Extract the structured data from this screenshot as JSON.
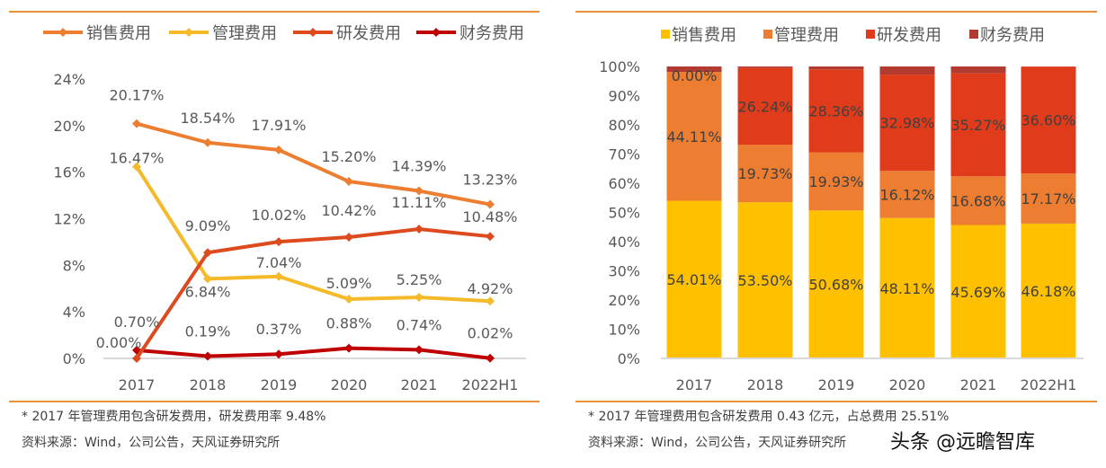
{
  "chart_data": [
    {
      "type": "line",
      "categories": [
        "2017",
        "2018",
        "2019",
        "2020",
        "2021",
        "2022H1"
      ],
      "ylim": [
        0,
        24
      ],
      "yticks": [
        "0%",
        "4%",
        "8%",
        "12%",
        "16%",
        "20%",
        "24%"
      ],
      "legend_position": "top",
      "grid": false,
      "series": [
        {
          "name": "销售费用",
          "color": "#ED7D31",
          "values": [
            20.17,
            18.54,
            17.91,
            15.2,
            14.39,
            13.23
          ],
          "labels": [
            "20.17%",
            "18.54%",
            "17.91%",
            "15.20%",
            "14.39%",
            "13.23%"
          ]
        },
        {
          "name": "管理费用",
          "color": "#F5BA2A",
          "values": [
            16.47,
            6.84,
            7.04,
            5.09,
            5.25,
            4.92
          ],
          "labels": [
            "16.47%",
            "6.84%",
            "7.04%",
            "5.09%",
            "5.25%",
            "4.92%"
          ]
        },
        {
          "name": "研发费用",
          "color": "#DD4A1E",
          "values": [
            0.0,
            9.09,
            10.02,
            10.42,
            11.11,
            10.48
          ],
          "labels": [
            "0.00%",
            "9.09%",
            "10.02%",
            "10.42%",
            "11.11%",
            "10.48%"
          ]
        },
        {
          "name": "财务费用",
          "color": "#C00000",
          "values": [
            0.7,
            0.19,
            0.37,
            0.88,
            0.74,
            0.02
          ],
          "labels": [
            "0.70%",
            "0.19%",
            "0.37%",
            "0.88%",
            "0.74%",
            "0.02%"
          ]
        }
      ]
    },
    {
      "type": "bar",
      "stacked": true,
      "categories": [
        "2017",
        "2018",
        "2019",
        "2020",
        "2021",
        "2022H1"
      ],
      "ylim": [
        0,
        100
      ],
      "yticks": [
        "0%",
        "10%",
        "20%",
        "30%",
        "40%",
        "50%",
        "60%",
        "70%",
        "80%",
        "90%",
        "100%"
      ],
      "legend_position": "top",
      "grid": false,
      "series": [
        {
          "name": "销售费用",
          "color": "#FFC000",
          "values": [
            54.01,
            53.5,
            50.68,
            48.11,
            45.69,
            46.18
          ],
          "labels": [
            "54.01%",
            "53.50%",
            "50.68%",
            "48.11%",
            "45.69%",
            "46.18%"
          ]
        },
        {
          "name": "管理费用",
          "color": "#ED7D31",
          "values": [
            44.11,
            19.73,
            19.93,
            16.12,
            16.68,
            17.17
          ],
          "labels": [
            "44.11%",
            "19.73%",
            "19.93%",
            "16.12%",
            "16.68%",
            "17.17%"
          ]
        },
        {
          "name": "研发费用",
          "color": "#E03C1C",
          "values": [
            0.0,
            26.24,
            28.36,
            32.98,
            35.27,
            36.6
          ],
          "labels": [
            "0.00%",
            "26.24%",
            "28.36%",
            "32.98%",
            "35.27%",
            "36.60%"
          ]
        },
        {
          "name": "财务费用",
          "color": "#B33A2E",
          "values": [
            1.88,
            0.53,
            1.03,
            2.79,
            2.36,
            0.05
          ],
          "labels": [
            "",
            "",
            "",
            "",
            "",
            ""
          ]
        }
      ]
    }
  ],
  "footnotes": {
    "left_note": "* 2017 年管理费用包含研发费用，研发费用率 9.48%",
    "left_source": "资料来源：Wind，公司公告，天风证券研究所",
    "right_note": "* 2017 年管理费用包含研发费用 0.43 亿元，占总费用 25.51%",
    "right_source": "资料来源：Wind，公司公告，天风证券研究所"
  },
  "watermark": "头条 @远瞻智库",
  "colors": {
    "rule": "#E8913A",
    "axis": "#D9D9D9"
  }
}
